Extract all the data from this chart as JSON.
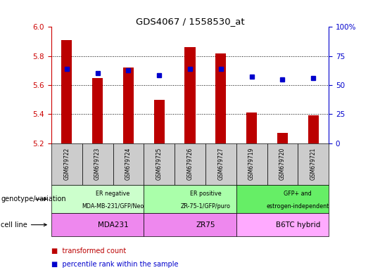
{
  "title": "GDS4067 / 1558530_at",
  "samples": [
    "GSM679722",
    "GSM679723",
    "GSM679724",
    "GSM679725",
    "GSM679726",
    "GSM679727",
    "GSM679719",
    "GSM679720",
    "GSM679721"
  ],
  "bar_values": [
    5.91,
    5.65,
    5.72,
    5.5,
    5.86,
    5.82,
    5.41,
    5.27,
    5.39
  ],
  "percentile_values": [
    5.71,
    5.68,
    5.7,
    5.67,
    5.71,
    5.71,
    5.66,
    5.64,
    5.65
  ],
  "ylim": [
    5.2,
    6.0
  ],
  "yticks": [
    5.2,
    5.4,
    5.6,
    5.8,
    6.0
  ],
  "y2lim": [
    0,
    100
  ],
  "y2ticks": [
    0,
    25,
    50,
    75,
    100
  ],
  "y2labels": [
    "0",
    "25",
    "50",
    "75",
    "100%"
  ],
  "bar_color": "#bb0000",
  "scatter_color": "#0000cc",
  "bar_bottom": 5.2,
  "bar_width": 0.35,
  "groups": [
    {
      "lines": [
        "ER negative",
        "MDA-MB-231/GFP/Neo"
      ],
      "start": 0,
      "end": 3,
      "color": "#ccffcc"
    },
    {
      "lines": [
        "ER positive",
        "ZR-75-1/GFP/puro"
      ],
      "start": 3,
      "end": 6,
      "color": "#aaffaa"
    },
    {
      "lines": [
        "GFP+ and",
        "estrogen-independent"
      ],
      "start": 6,
      "end": 9,
      "color": "#66ee66"
    }
  ],
  "cell_lines": [
    {
      "label": "MDA231",
      "start": 0,
      "end": 3,
      "color": "#ee88ee"
    },
    {
      "label": "ZR75",
      "start": 3,
      "end": 6,
      "color": "#ee88ee"
    },
    {
      "label": "B6TC hybrid",
      "start": 6,
      "end": 9,
      "color": "#ffaaff"
    }
  ],
  "sample_box_color": "#cccccc",
  "genotype_label": "genotype/variation",
  "cellline_label": "cell line",
  "legend_bar": "transformed count",
  "legend_scatter": "percentile rank within the sample",
  "background_color": "#ffffff",
  "left_axis_color": "#cc0000",
  "right_axis_color": "#0000cc",
  "grid_yticks": [
    5.4,
    5.6,
    5.8
  ]
}
